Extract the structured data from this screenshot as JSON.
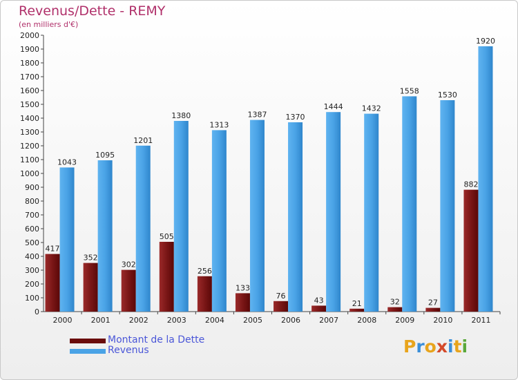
{
  "header": {
    "title": "Revenus/Dette - REMY",
    "subtitle": "(en milliers d'€)"
  },
  "legend": {
    "items": [
      {
        "label": "Montant de la Dette",
        "color": "#7a1010"
      },
      {
        "label": "Revenus",
        "color": "#4aa3e6"
      }
    ]
  },
  "logo": {
    "text": "Proxiti",
    "colors": [
      "#e8a41c",
      "#3b8fd9",
      "#e8a41c",
      "#d44a2a",
      "#3b8fd9",
      "#e8a41c",
      "#5aa83a"
    ]
  },
  "chart_data": {
    "type": "bar",
    "categories": [
      "2000",
      "2001",
      "2002",
      "2003",
      "2004",
      "2005",
      "2006",
      "2007",
      "2008",
      "2009",
      "2010",
      "2011"
    ],
    "series": [
      {
        "name": "Montant de la Dette",
        "values": [
          417,
          352,
          302,
          505,
          256,
          133,
          76,
          43,
          21,
          32,
          27,
          882
        ],
        "color": "#7a1a1a"
      },
      {
        "name": "Revenus",
        "values": [
          1043,
          1095,
          1201,
          1380,
          1313,
          1387,
          1370,
          1444,
          1432,
          1558,
          1530,
          1920
        ],
        "color": "#4aa3e6"
      }
    ],
    "ylim": [
      0,
      2000
    ],
    "ytick_step": 100,
    "grid": false,
    "legend_position": "bottom-left"
  }
}
